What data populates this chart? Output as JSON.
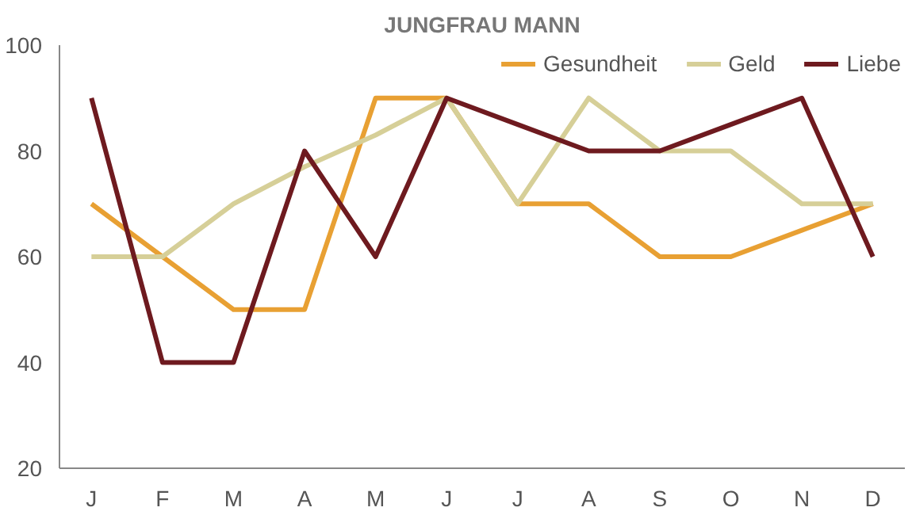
{
  "chart_data": {
    "type": "line",
    "title": "JUNGFRAU MANN",
    "categories": [
      "J",
      "F",
      "M",
      "A",
      "M",
      "J",
      "J",
      "A",
      "S",
      "O",
      "N",
      "D"
    ],
    "series": [
      {
        "name": "Gesundheit",
        "color": "#e8a033",
        "values": [
          70,
          60,
          50,
          50,
          90,
          90,
          70,
          70,
          60,
          60,
          65,
          70
        ]
      },
      {
        "name": "Geld",
        "color": "#d6cf98",
        "values": [
          60,
          60,
          70,
          77,
          83,
          90,
          70,
          90,
          80,
          80,
          70,
          70
        ]
      },
      {
        "name": "Liebe",
        "color": "#6e1a1f",
        "values": [
          90,
          40,
          40,
          80,
          60,
          90,
          85,
          80,
          80,
          85,
          90,
          60
        ]
      }
    ],
    "ylim": [
      20,
      100
    ],
    "yticks": [
      20,
      40,
      60,
      80,
      100
    ],
    "grid": false,
    "legend": "top right",
    "marker": "none",
    "line_style": "solid"
  }
}
